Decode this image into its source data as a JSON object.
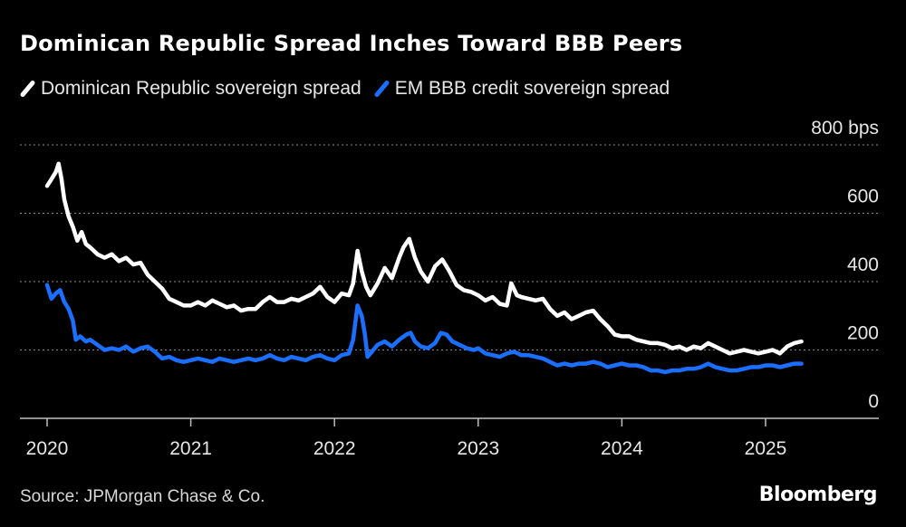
{
  "chart_data": {
    "type": "line",
    "title": "Dominican Republic Spread Inches Toward BBB Peers",
    "ylim": [
      0,
      800
    ],
    "y_ticks": [
      {
        "value": 800,
        "label": "800 bps"
      },
      {
        "value": 600,
        "label": "600"
      },
      {
        "value": 400,
        "label": "400"
      },
      {
        "value": 200,
        "label": "200"
      },
      {
        "value": 0,
        "label": "0"
      }
    ],
    "x_ticks": [
      {
        "year": 2020,
        "label": "2020"
      },
      {
        "year": 2021,
        "label": "2021"
      },
      {
        "year": 2022,
        "label": "2022"
      },
      {
        "year": 2023,
        "label": "2023"
      },
      {
        "year": 2024,
        "label": "2024"
      },
      {
        "year": 2025,
        "label": "2025"
      }
    ],
    "xlim": [
      2019.85,
      2025.75
    ],
    "grid": true,
    "legend_position": "top-left",
    "series": [
      {
        "name": "Dominican Republic sovereign spread",
        "color": "#ffffff",
        "points": [
          [
            2020.0,
            680
          ],
          [
            2020.03,
            700
          ],
          [
            2020.06,
            720
          ],
          [
            2020.08,
            745
          ],
          [
            2020.1,
            700
          ],
          [
            2020.12,
            640
          ],
          [
            2020.15,
            590
          ],
          [
            2020.18,
            560
          ],
          [
            2020.21,
            520
          ],
          [
            2020.24,
            545
          ],
          [
            2020.27,
            510
          ],
          [
            2020.3,
            500
          ],
          [
            2020.35,
            480
          ],
          [
            2020.4,
            470
          ],
          [
            2020.45,
            480
          ],
          [
            2020.5,
            460
          ],
          [
            2020.55,
            470
          ],
          [
            2020.6,
            450
          ],
          [
            2020.65,
            455
          ],
          [
            2020.7,
            420
          ],
          [
            2020.75,
            400
          ],
          [
            2020.8,
            380
          ],
          [
            2020.85,
            350
          ],
          [
            2020.9,
            340
          ],
          [
            2020.95,
            330
          ],
          [
            2021.0,
            330
          ],
          [
            2021.05,
            340
          ],
          [
            2021.1,
            330
          ],
          [
            2021.15,
            345
          ],
          [
            2021.2,
            335
          ],
          [
            2021.25,
            325
          ],
          [
            2021.3,
            330
          ],
          [
            2021.35,
            315
          ],
          [
            2021.4,
            320
          ],
          [
            2021.45,
            320
          ],
          [
            2021.5,
            340
          ],
          [
            2021.55,
            355
          ],
          [
            2021.6,
            340
          ],
          [
            2021.65,
            340
          ],
          [
            2021.7,
            350
          ],
          [
            2021.75,
            345
          ],
          [
            2021.8,
            355
          ],
          [
            2021.85,
            365
          ],
          [
            2021.9,
            385
          ],
          [
            2021.95,
            355
          ],
          [
            2022.0,
            340
          ],
          [
            2022.05,
            365
          ],
          [
            2022.1,
            360
          ],
          [
            2022.13,
            395
          ],
          [
            2022.16,
            490
          ],
          [
            2022.19,
            430
          ],
          [
            2022.22,
            385
          ],
          [
            2022.25,
            360
          ],
          [
            2022.3,
            395
          ],
          [
            2022.35,
            440
          ],
          [
            2022.4,
            410
          ],
          [
            2022.45,
            470
          ],
          [
            2022.48,
            500
          ],
          [
            2022.52,
            525
          ],
          [
            2022.56,
            470
          ],
          [
            2022.6,
            430
          ],
          [
            2022.65,
            400
          ],
          [
            2022.7,
            445
          ],
          [
            2022.75,
            465
          ],
          [
            2022.8,
            430
          ],
          [
            2022.85,
            390
          ],
          [
            2022.9,
            375
          ],
          [
            2022.95,
            370
          ],
          [
            2023.0,
            360
          ],
          [
            2023.05,
            345
          ],
          [
            2023.1,
            355
          ],
          [
            2023.15,
            335
          ],
          [
            2023.2,
            330
          ],
          [
            2023.23,
            395
          ],
          [
            2023.27,
            360
          ],
          [
            2023.3,
            355
          ],
          [
            2023.35,
            350
          ],
          [
            2023.4,
            345
          ],
          [
            2023.45,
            350
          ],
          [
            2023.5,
            320
          ],
          [
            2023.55,
            300
          ],
          [
            2023.6,
            310
          ],
          [
            2023.65,
            290
          ],
          [
            2023.7,
            300
          ],
          [
            2023.75,
            310
          ],
          [
            2023.8,
            315
          ],
          [
            2023.85,
            290
          ],
          [
            2023.9,
            270
          ],
          [
            2023.95,
            245
          ],
          [
            2024.0,
            240
          ],
          [
            2024.05,
            240
          ],
          [
            2024.1,
            230
          ],
          [
            2024.15,
            225
          ],
          [
            2024.2,
            220
          ],
          [
            2024.25,
            220
          ],
          [
            2024.3,
            215
          ],
          [
            2024.35,
            205
          ],
          [
            2024.4,
            210
          ],
          [
            2024.45,
            200
          ],
          [
            2024.5,
            210
          ],
          [
            2024.55,
            205
          ],
          [
            2024.6,
            220
          ],
          [
            2024.65,
            210
          ],
          [
            2024.7,
            200
          ],
          [
            2024.75,
            190
          ],
          [
            2024.8,
            195
          ],
          [
            2024.85,
            200
          ],
          [
            2024.9,
            195
          ],
          [
            2024.95,
            190
          ],
          [
            2025.0,
            195
          ],
          [
            2025.05,
            200
          ],
          [
            2025.1,
            190
          ],
          [
            2025.15,
            210
          ],
          [
            2025.2,
            220
          ],
          [
            2025.25,
            225
          ]
        ]
      },
      {
        "name": "EM BBB credit sovereign spread",
        "color": "#1a6fff",
        "points": [
          [
            2020.0,
            390
          ],
          [
            2020.03,
            350
          ],
          [
            2020.06,
            365
          ],
          [
            2020.09,
            375
          ],
          [
            2020.12,
            340
          ],
          [
            2020.15,
            320
          ],
          [
            2020.18,
            285
          ],
          [
            2020.2,
            230
          ],
          [
            2020.23,
            240
          ],
          [
            2020.27,
            225
          ],
          [
            2020.3,
            230
          ],
          [
            2020.35,
            215
          ],
          [
            2020.4,
            200
          ],
          [
            2020.45,
            205
          ],
          [
            2020.5,
            200
          ],
          [
            2020.55,
            210
          ],
          [
            2020.6,
            195
          ],
          [
            2020.65,
            205
          ],
          [
            2020.7,
            210
          ],
          [
            2020.75,
            195
          ],
          [
            2020.8,
            175
          ],
          [
            2020.85,
            180
          ],
          [
            2020.9,
            170
          ],
          [
            2020.95,
            165
          ],
          [
            2021.0,
            170
          ],
          [
            2021.05,
            175
          ],
          [
            2021.1,
            170
          ],
          [
            2021.15,
            165
          ],
          [
            2021.2,
            175
          ],
          [
            2021.25,
            170
          ],
          [
            2021.3,
            165
          ],
          [
            2021.35,
            170
          ],
          [
            2021.4,
            175
          ],
          [
            2021.45,
            170
          ],
          [
            2021.5,
            175
          ],
          [
            2021.55,
            185
          ],
          [
            2021.6,
            175
          ],
          [
            2021.65,
            170
          ],
          [
            2021.7,
            180
          ],
          [
            2021.75,
            175
          ],
          [
            2021.8,
            170
          ],
          [
            2021.85,
            180
          ],
          [
            2021.9,
            185
          ],
          [
            2021.95,
            175
          ],
          [
            2022.0,
            170
          ],
          [
            2022.05,
            185
          ],
          [
            2022.1,
            190
          ],
          [
            2022.13,
            230
          ],
          [
            2022.16,
            330
          ],
          [
            2022.19,
            300
          ],
          [
            2022.21,
            250
          ],
          [
            2022.23,
            180
          ],
          [
            2022.26,
            195
          ],
          [
            2022.3,
            215
          ],
          [
            2022.35,
            225
          ],
          [
            2022.4,
            210
          ],
          [
            2022.45,
            230
          ],
          [
            2022.5,
            245
          ],
          [
            2022.53,
            250
          ],
          [
            2022.56,
            225
          ],
          [
            2022.6,
            210
          ],
          [
            2022.65,
            205
          ],
          [
            2022.7,
            220
          ],
          [
            2022.74,
            250
          ],
          [
            2022.78,
            245
          ],
          [
            2022.82,
            225
          ],
          [
            2022.87,
            215
          ],
          [
            2022.92,
            205
          ],
          [
            2022.97,
            200
          ],
          [
            2023.0,
            205
          ],
          [
            2023.05,
            190
          ],
          [
            2023.1,
            185
          ],
          [
            2023.15,
            180
          ],
          [
            2023.2,
            190
          ],
          [
            2023.25,
            195
          ],
          [
            2023.3,
            185
          ],
          [
            2023.35,
            185
          ],
          [
            2023.4,
            180
          ],
          [
            2023.45,
            175
          ],
          [
            2023.5,
            165
          ],
          [
            2023.55,
            155
          ],
          [
            2023.6,
            160
          ],
          [
            2023.65,
            155
          ],
          [
            2023.7,
            160
          ],
          [
            2023.75,
            160
          ],
          [
            2023.8,
            165
          ],
          [
            2023.85,
            160
          ],
          [
            2023.9,
            150
          ],
          [
            2023.95,
            155
          ],
          [
            2024.0,
            160
          ],
          [
            2024.05,
            155
          ],
          [
            2024.1,
            155
          ],
          [
            2024.15,
            150
          ],
          [
            2024.2,
            140
          ],
          [
            2024.25,
            140
          ],
          [
            2024.3,
            135
          ],
          [
            2024.35,
            140
          ],
          [
            2024.4,
            140
          ],
          [
            2024.45,
            145
          ],
          [
            2024.5,
            145
          ],
          [
            2024.55,
            150
          ],
          [
            2024.6,
            160
          ],
          [
            2024.65,
            150
          ],
          [
            2024.7,
            145
          ],
          [
            2024.75,
            140
          ],
          [
            2024.8,
            140
          ],
          [
            2024.85,
            145
          ],
          [
            2024.9,
            150
          ],
          [
            2024.95,
            150
          ],
          [
            2025.0,
            155
          ],
          [
            2025.05,
            155
          ],
          [
            2025.1,
            150
          ],
          [
            2025.15,
            155
          ],
          [
            2025.2,
            160
          ],
          [
            2025.25,
            160
          ]
        ]
      }
    ]
  },
  "source": "Source: JPMorgan Chase & Co.",
  "brand": "Bloomberg"
}
